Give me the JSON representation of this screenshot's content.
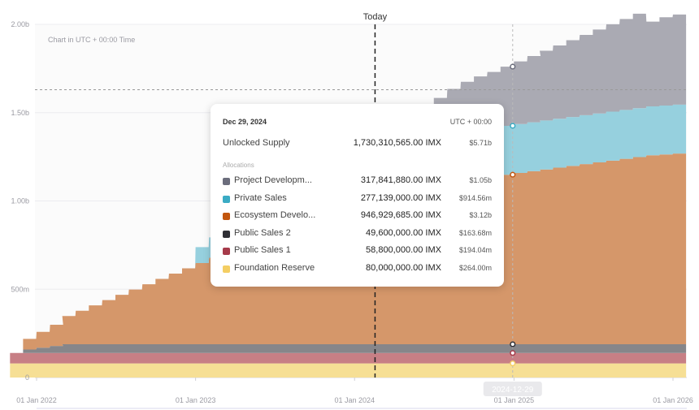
{
  "chart_data": {
    "type": "area",
    "stacked": true,
    "stepped": true,
    "note": "Chart in UTC + 00:00 Time",
    "x_ticks": [
      "01 Jan 2022",
      "01 Jan 2023",
      "01 Jan 2024",
      "01 Jan 2025",
      "01 Jan 2026"
    ],
    "y_ticks": [
      "0",
      "500m",
      "1.00b",
      "1.50b",
      "2.00b"
    ],
    "ylim": [
      0,
      2000
    ],
    "y_unit": "millions IMX",
    "today_label": "Today",
    "hover_x_label": "2024-12-29",
    "reference_line_value": 1630,
    "x": [
      "2021-11",
      "2021-12",
      "2022-01",
      "2022-02",
      "2022-03",
      "2022-04",
      "2022-05",
      "2022-06",
      "2022-07",
      "2022-08",
      "2022-09",
      "2022-10",
      "2022-11",
      "2022-12",
      "2023-01",
      "2023-02",
      "2023-03",
      "2023-04",
      "2023-05",
      "2023-06",
      "2023-07",
      "2023-08",
      "2023-09",
      "2023-10",
      "2023-11",
      "2023-12",
      "2024-01",
      "2024-02",
      "2024-03",
      "2024-04",
      "2024-05",
      "2024-06",
      "2024-07",
      "2024-08",
      "2024-09",
      "2024-10",
      "2024-11",
      "2024-12",
      "2025-01",
      "2025-02",
      "2025-03",
      "2025-04",
      "2025-05",
      "2025-06",
      "2025-07",
      "2025-08",
      "2025-09",
      "2025-10",
      "2025-11",
      "2025-12",
      "2026-01"
    ],
    "series": [
      {
        "name": "Foundation Reserve",
        "color": "#f6df95",
        "values": [
          80,
          80,
          80,
          80,
          80,
          80,
          80,
          80,
          80,
          80,
          80,
          80,
          80,
          80,
          80,
          80,
          80,
          80,
          80,
          80,
          80,
          80,
          80,
          80,
          80,
          80,
          80,
          80,
          80,
          80,
          80,
          80,
          80,
          80,
          80,
          80,
          80,
          80,
          80,
          80,
          80,
          80,
          80,
          80,
          80,
          80,
          80,
          80,
          80,
          80,
          80
        ]
      },
      {
        "name": "Public Sales 1",
        "color": "#c77f85",
        "values": [
          58.8,
          58.8,
          58.8,
          58.8,
          58.8,
          58.8,
          58.8,
          58.8,
          58.8,
          58.8,
          58.8,
          58.8,
          58.8,
          58.8,
          58.8,
          58.8,
          58.8,
          58.8,
          58.8,
          58.8,
          58.8,
          58.8,
          58.8,
          58.8,
          58.8,
          58.8,
          58.8,
          58.8,
          58.8,
          58.8,
          58.8,
          58.8,
          58.8,
          58.8,
          58.8,
          58.8,
          58.8,
          58.8,
          58.8,
          58.8,
          58.8,
          58.8,
          58.8,
          58.8,
          58.8,
          58.8,
          58.8,
          58.8,
          58.8,
          58.8,
          58.8
        ]
      },
      {
        "name": "Public Sales 2",
        "color": "#86868a",
        "values": [
          0,
          20,
          30,
          40,
          49.6,
          49.6,
          49.6,
          49.6,
          49.6,
          49.6,
          49.6,
          49.6,
          49.6,
          49.6,
          49.6,
          49.6,
          49.6,
          49.6,
          49.6,
          49.6,
          49.6,
          49.6,
          49.6,
          49.6,
          49.6,
          49.6,
          49.6,
          49.6,
          49.6,
          49.6,
          49.6,
          49.6,
          49.6,
          49.6,
          49.6,
          49.6,
          49.6,
          49.6,
          49.6,
          49.6,
          49.6,
          49.6,
          49.6,
          49.6,
          49.6,
          49.6,
          49.6,
          49.6,
          49.6,
          49.6,
          49.6
        ]
      },
      {
        "name": "Ecosystem Development",
        "color": "#d5976a",
        "values": [
          0,
          60,
          90,
          120,
          160,
          190,
          220,
          250,
          280,
          310,
          340,
          370,
          400,
          430,
          460,
          490,
          520,
          550,
          580,
          610,
          640,
          670,
          700,
          730,
          760,
          790,
          810,
          830,
          850,
          860,
          880,
          890,
          900,
          920,
          930,
          940,
          946.9,
          960,
          970,
          980,
          990,
          1000,
          1010,
          1020,
          1030,
          1040,
          1050,
          1060,
          1070,
          1075,
          1080
        ]
      },
      {
        "name": "Private Sales",
        "color": "#96d0de",
        "values": [
          0,
          0,
          0,
          0,
          0,
          0,
          0,
          0,
          0,
          0,
          0,
          0,
          0,
          0,
          90,
          115,
          135,
          150,
          170,
          185,
          200,
          210,
          220,
          230,
          240,
          250,
          255,
          260,
          265,
          270,
          272,
          274,
          275,
          276,
          276.5,
          277,
          277.1,
          277.1,
          277.1,
          277.1,
          277.1,
          277.1,
          277.1,
          277.1,
          277.1,
          277.1,
          277.1,
          277.1,
          277.1,
          277.1,
          277.1
        ]
      },
      {
        "name": "Project Development",
        "color": "#aaaab3",
        "values": [
          0,
          0,
          0,
          0,
          0,
          0,
          0,
          0,
          0,
          0,
          0,
          0,
          0,
          0,
          0,
          0,
          0,
          0,
          0,
          0,
          0,
          0,
          0,
          0,
          0,
          0,
          40,
          70,
          100,
          130,
          160,
          190,
          220,
          250,
          280,
          300,
          317.8,
          335,
          355,
          375,
          395,
          415,
          435,
          455,
          475,
          495,
          515,
          535,
          480,
          500,
          510
        ]
      }
    ]
  },
  "tooltip": {
    "date": "Dec 29, 2024",
    "timezone": "UTC + 00:00",
    "total_label": "Unlocked Supply",
    "total_amount": "1,730,310,565.00 IMX",
    "total_usd": "$5.71b",
    "section_label": "Allocations",
    "rows": [
      {
        "label": "Project Developm...",
        "amount": "317,841,880.00 IMX",
        "usd": "$1.05b",
        "color": "#6b6d7c"
      },
      {
        "label": "Private Sales",
        "amount": "277,139,000.00 IMX",
        "usd": "$914.56m",
        "color": "#3aabc4"
      },
      {
        "label": "Ecosystem Develo...",
        "amount": "946,929,685.00 IMX",
        "usd": "$3.12b",
        "color": "#c2560e"
      },
      {
        "label": "Public Sales 2",
        "amount": "49,600,000.00 IMX",
        "usd": "$163.68m",
        "color": "#2f2f35"
      },
      {
        "label": "Public Sales 1",
        "amount": "58,800,000.00 IMX",
        "usd": "$194.04m",
        "color": "#a63a4a"
      },
      {
        "label": "Foundation Reserve",
        "amount": "80,000,000.00 IMX",
        "usd": "$264.00m",
        "color": "#f4ce63"
      }
    ]
  }
}
